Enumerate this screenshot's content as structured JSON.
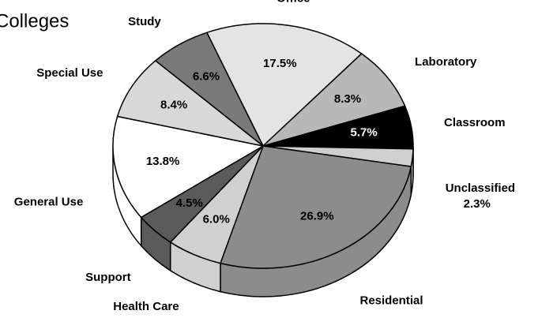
{
  "chart_data": {
    "type": "pie",
    "title": "Colleges",
    "categories": [
      "Office",
      "Laboratory",
      "Classroom",
      "Unclassified",
      "Residential",
      "Health Care",
      "Support",
      "General Use",
      "Special Use",
      "Study"
    ],
    "values": [
      17.5,
      8.3,
      5.7,
      2.3,
      26.9,
      6.0,
      4.5,
      13.8,
      8.4,
      6.6
    ],
    "value_labels": [
      "17.5%",
      "8.3%",
      "5.7%",
      "2.3%",
      "26.9%",
      "6.0%",
      "4.5%",
      "13.8%",
      "8.4%",
      "6.6%"
    ],
    "colors": [
      "#e4e4e4",
      "#b8b8b8",
      "#000000",
      "#cfcfcf",
      "#8c8c8c",
      "#d0d0d0",
      "#5a5a5a",
      "#ffffff",
      "#d8d8d8",
      "#7a7a7a"
    ]
  }
}
